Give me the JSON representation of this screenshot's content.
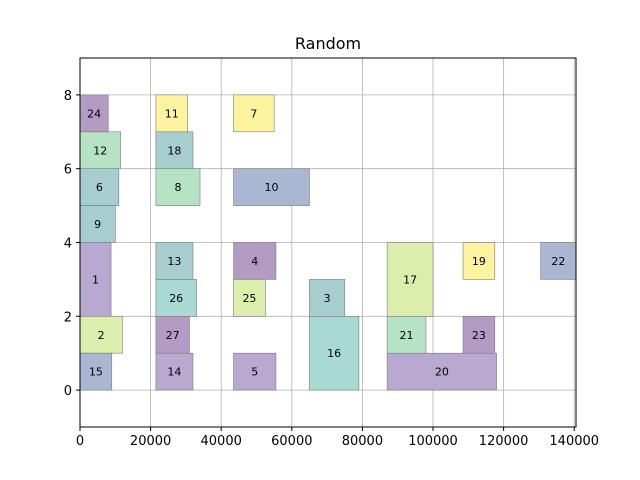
{
  "chart_data": {
    "type": "rectangles",
    "title": "Random",
    "xlabel": "",
    "ylabel": "",
    "xlim": [
      0,
      140500
    ],
    "ylim": [
      -1,
      9
    ],
    "xticks": [
      0,
      20000,
      40000,
      60000,
      80000,
      100000,
      120000,
      140000
    ],
    "xtick_labels": [
      "0",
      "20000",
      "40000",
      "60000",
      "80000",
      "100000",
      "120000",
      "140000"
    ],
    "yticks": [
      0,
      2,
      4,
      6,
      8
    ],
    "ytick_labels": [
      "0",
      "2",
      "4",
      "6",
      "8"
    ],
    "grid": true,
    "legend": "none",
    "colors": {
      "purple": "#b9a8cf",
      "green": "#b6e3c3",
      "yellow": "#fef4a0",
      "teal": "#a7cdcf",
      "blue": "#aab7d2",
      "lime": "#dbeeab",
      "violet": "#b39bc3",
      "aqua": "#a8d9d2"
    },
    "boxes": [
      {
        "label": "1",
        "x0": 0,
        "x1": 8800,
        "y0": 2,
        "y1": 4,
        "color": "purple"
      },
      {
        "label": "2",
        "x0": 0,
        "x1": 12000,
        "y0": 1,
        "y1": 2,
        "color": "lime"
      },
      {
        "label": "3",
        "x0": 65000,
        "x1": 75000,
        "y0": 2,
        "y1": 3,
        "color": "teal"
      },
      {
        "label": "4",
        "x0": 43500,
        "x1": 55500,
        "y0": 3,
        "y1": 4,
        "color": "violet"
      },
      {
        "label": "5",
        "x0": 43500,
        "x1": 55500,
        "y0": 0,
        "y1": 1,
        "color": "purple"
      },
      {
        "label": "6",
        "x0": 0,
        "x1": 11000,
        "y0": 5,
        "y1": 6,
        "color": "teal"
      },
      {
        "label": "7",
        "x0": 43500,
        "x1": 55000,
        "y0": 7,
        "y1": 8,
        "color": "yellow"
      },
      {
        "label": "8",
        "x0": 21500,
        "x1": 34000,
        "y0": 5,
        "y1": 6,
        "color": "green"
      },
      {
        "label": "9",
        "x0": 0,
        "x1": 10000,
        "y0": 4,
        "y1": 5,
        "color": "teal"
      },
      {
        "label": "10",
        "x0": 43500,
        "x1": 65000,
        "y0": 5,
        "y1": 6,
        "color": "blue"
      },
      {
        "label": "11",
        "x0": 21500,
        "x1": 30500,
        "y0": 7,
        "y1": 8,
        "color": "yellow"
      },
      {
        "label": "12",
        "x0": 0,
        "x1": 11500,
        "y0": 6,
        "y1": 7,
        "color": "green"
      },
      {
        "label": "13",
        "x0": 21500,
        "x1": 32000,
        "y0": 3,
        "y1": 4,
        "color": "teal"
      },
      {
        "label": "14",
        "x0": 21500,
        "x1": 32000,
        "y0": 0,
        "y1": 1,
        "color": "purple"
      },
      {
        "label": "15",
        "x0": 0,
        "x1": 9000,
        "y0": 0,
        "y1": 1,
        "color": "blue"
      },
      {
        "label": "16",
        "x0": 65000,
        "x1": 79000,
        "y0": 0,
        "y1": 2,
        "color": "aqua"
      },
      {
        "label": "17",
        "x0": 87000,
        "x1": 100000,
        "y0": 2,
        "y1": 4,
        "color": "lime"
      },
      {
        "label": "18",
        "x0": 21500,
        "x1": 32000,
        "y0": 6,
        "y1": 7,
        "color": "teal"
      },
      {
        "label": "19",
        "x0": 108500,
        "x1": 117500,
        "y0": 3,
        "y1": 4,
        "color": "yellow"
      },
      {
        "label": "20",
        "x0": 87000,
        "x1": 118000,
        "y0": 0,
        "y1": 1,
        "color": "purple"
      },
      {
        "label": "21",
        "x0": 87000,
        "x1": 98000,
        "y0": 1,
        "y1": 2,
        "color": "green"
      },
      {
        "label": "22",
        "x0": 130500,
        "x1": 140500,
        "y0": 3,
        "y1": 4,
        "color": "blue"
      },
      {
        "label": "23",
        "x0": 108500,
        "x1": 117500,
        "y0": 1,
        "y1": 2,
        "color": "violet"
      },
      {
        "label": "24",
        "x0": 0,
        "x1": 8000,
        "y0": 7,
        "y1": 8,
        "color": "violet"
      },
      {
        "label": "25",
        "x0": 43500,
        "x1": 52500,
        "y0": 2,
        "y1": 3,
        "color": "lime"
      },
      {
        "label": "26",
        "x0": 21500,
        "x1": 33000,
        "y0": 2,
        "y1": 3,
        "color": "aqua"
      },
      {
        "label": "27",
        "x0": 21500,
        "x1": 31000,
        "y0": 1,
        "y1": 2,
        "color": "violet"
      }
    ]
  }
}
